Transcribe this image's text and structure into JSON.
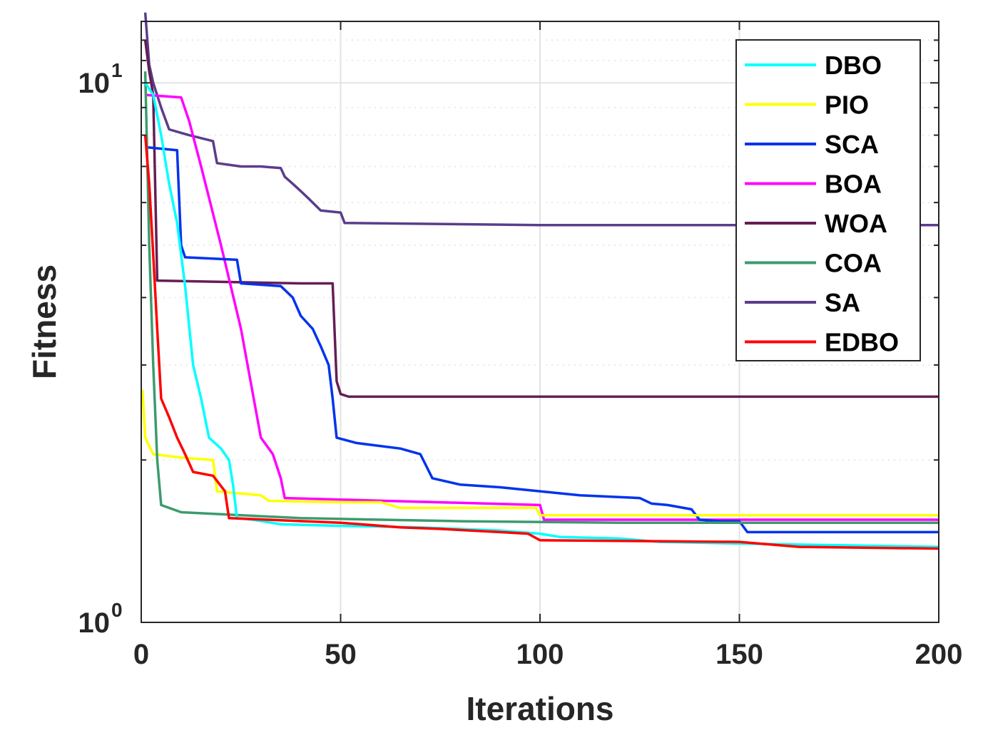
{
  "chart_data": {
    "type": "line",
    "xlabel": "Iterations",
    "ylabel": "Fitness",
    "xlim": [
      0,
      200
    ],
    "ylim": [
      1,
      13
    ],
    "yscale": "log",
    "grid": true,
    "legend_position": "top-right",
    "x_ticks": [
      {
        "value": 0,
        "label": "0"
      },
      {
        "value": 50,
        "label": "50"
      },
      {
        "value": 100,
        "label": "100"
      },
      {
        "value": 150,
        "label": "150"
      },
      {
        "value": 200,
        "label": "200"
      }
    ],
    "y_ticks": [
      {
        "value": 1,
        "base": "10",
        "exp": "0"
      },
      {
        "value": 10,
        "base": "10",
        "exp": "1"
      }
    ],
    "series": [
      {
        "name": "SA",
        "color": "#5a3d8a",
        "points": [
          [
            1,
            13.5
          ],
          [
            2,
            10.8
          ],
          [
            3,
            10
          ],
          [
            5,
            9
          ],
          [
            7,
            8.2
          ],
          [
            12,
            8
          ],
          [
            18,
            7.8
          ],
          [
            19,
            7.1
          ],
          [
            25,
            7
          ],
          [
            30,
            7
          ],
          [
            35,
            6.95
          ],
          [
            36,
            6.7
          ],
          [
            38,
            6.5
          ],
          [
            40,
            6.3
          ],
          [
            42,
            6.1
          ],
          [
            45,
            5.8
          ],
          [
            50,
            5.75
          ],
          [
            51,
            5.5
          ],
          [
            100,
            5.45
          ],
          [
            200,
            5.45
          ]
        ]
      },
      {
        "name": "WOA",
        "color": "#641e54",
        "points": [
          [
            1,
            12
          ],
          [
            2,
            10.5
          ],
          [
            3,
            9.5
          ],
          [
            4,
            4.3
          ],
          [
            40,
            4.25
          ],
          [
            48,
            4.25
          ],
          [
            49,
            2.8
          ],
          [
            50,
            2.65
          ],
          [
            52,
            2.62
          ],
          [
            200,
            2.62
          ]
        ]
      },
      {
        "name": "BOA",
        "color": "#ff00ff",
        "points": [
          [
            1,
            9.5
          ],
          [
            10,
            9.4
          ],
          [
            12,
            8.5
          ],
          [
            15,
            7
          ],
          [
            20,
            5
          ],
          [
            25,
            3.5
          ],
          [
            30,
            2.2
          ],
          [
            33,
            2.05
          ],
          [
            35,
            1.85
          ],
          [
            36,
            1.7
          ],
          [
            100,
            1.65
          ],
          [
            101,
            1.55
          ],
          [
            200,
            1.55
          ]
        ]
      },
      {
        "name": "SCA",
        "color": "#0033ee",
        "points": [
          [
            1,
            7.6
          ],
          [
            9,
            7.5
          ],
          [
            10,
            5
          ],
          [
            11,
            4.75
          ],
          [
            24,
            4.7
          ],
          [
            25,
            4.25
          ],
          [
            35,
            4.2
          ],
          [
            38,
            4
          ],
          [
            40,
            3.7
          ],
          [
            43,
            3.5
          ],
          [
            45,
            3.25
          ],
          [
            47,
            3
          ],
          [
            48,
            2.6
          ],
          [
            49,
            2.2
          ],
          [
            54,
            2.15
          ],
          [
            65,
            2.1
          ],
          [
            70,
            2.05
          ],
          [
            73,
            1.85
          ],
          [
            80,
            1.8
          ],
          [
            90,
            1.78
          ],
          [
            100,
            1.75
          ],
          [
            110,
            1.72
          ],
          [
            125,
            1.7
          ],
          [
            128,
            1.66
          ],
          [
            132,
            1.65
          ],
          [
            138,
            1.62
          ],
          [
            140,
            1.55
          ],
          [
            145,
            1.54
          ],
          [
            150,
            1.54
          ],
          [
            152,
            1.47
          ],
          [
            200,
            1.47
          ]
        ]
      },
      {
        "name": "PIO",
        "color": "#ffff00",
        "points": [
          [
            0.3,
            2.7
          ],
          [
            1,
            2.2
          ],
          [
            3,
            2.05
          ],
          [
            10,
            2.02
          ],
          [
            18,
            2
          ],
          [
            19,
            1.75
          ],
          [
            30,
            1.72
          ],
          [
            32,
            1.68
          ],
          [
            50,
            1.67
          ],
          [
            60,
            1.67
          ],
          [
            65,
            1.63
          ],
          [
            99,
            1.63
          ],
          [
            100,
            1.58
          ],
          [
            200,
            1.58
          ]
        ]
      },
      {
        "name": "COA",
        "color": "#3c9b6e",
        "points": [
          [
            1,
            10.5
          ],
          [
            2,
            5
          ],
          [
            3,
            3
          ],
          [
            4,
            2
          ],
          [
            5,
            1.65
          ],
          [
            10,
            1.6
          ],
          [
            40,
            1.56
          ],
          [
            80,
            1.54
          ],
          [
            120,
            1.53
          ],
          [
            200,
            1.53
          ]
        ]
      },
      {
        "name": "DBO",
        "color": "#00ffff",
        "points": [
          [
            1,
            10
          ],
          [
            3,
            9.5
          ],
          [
            5,
            8
          ],
          [
            7,
            6.5
          ],
          [
            9,
            5.5
          ],
          [
            11,
            4.2
          ],
          [
            13,
            3
          ],
          [
            15,
            2.6
          ],
          [
            17,
            2.2
          ],
          [
            20,
            2.1
          ],
          [
            22,
            2
          ],
          [
            23,
            1.8
          ],
          [
            24,
            1.56
          ],
          [
            28,
            1.55
          ],
          [
            35,
            1.52
          ],
          [
            50,
            1.51
          ],
          [
            70,
            1.5
          ],
          [
            90,
            1.48
          ],
          [
            100,
            1.46
          ],
          [
            105,
            1.44
          ],
          [
            120,
            1.43
          ],
          [
            130,
            1.41
          ],
          [
            150,
            1.4
          ],
          [
            175,
            1.39
          ],
          [
            200,
            1.38
          ]
        ]
      },
      {
        "name": "EDBO",
        "color": "#ff0000",
        "points": [
          [
            1,
            8
          ],
          [
            2,
            6.5
          ],
          [
            3,
            4.8
          ],
          [
            4,
            3.5
          ],
          [
            5,
            2.6
          ],
          [
            7,
            2.4
          ],
          [
            9,
            2.2
          ],
          [
            11,
            2.05
          ],
          [
            13,
            1.9
          ],
          [
            18,
            1.87
          ],
          [
            21,
            1.75
          ],
          [
            22,
            1.56
          ],
          [
            50,
            1.53
          ],
          [
            65,
            1.5
          ],
          [
            75,
            1.49
          ],
          [
            90,
            1.47
          ],
          [
            97,
            1.46
          ],
          [
            100,
            1.42
          ],
          [
            150,
            1.41
          ],
          [
            165,
            1.38
          ],
          [
            200,
            1.37
          ]
        ]
      }
    ],
    "legend_order": [
      "DBO",
      "PIO",
      "SCA",
      "BOA",
      "WOA",
      "COA",
      "SA",
      "EDBO"
    ]
  }
}
